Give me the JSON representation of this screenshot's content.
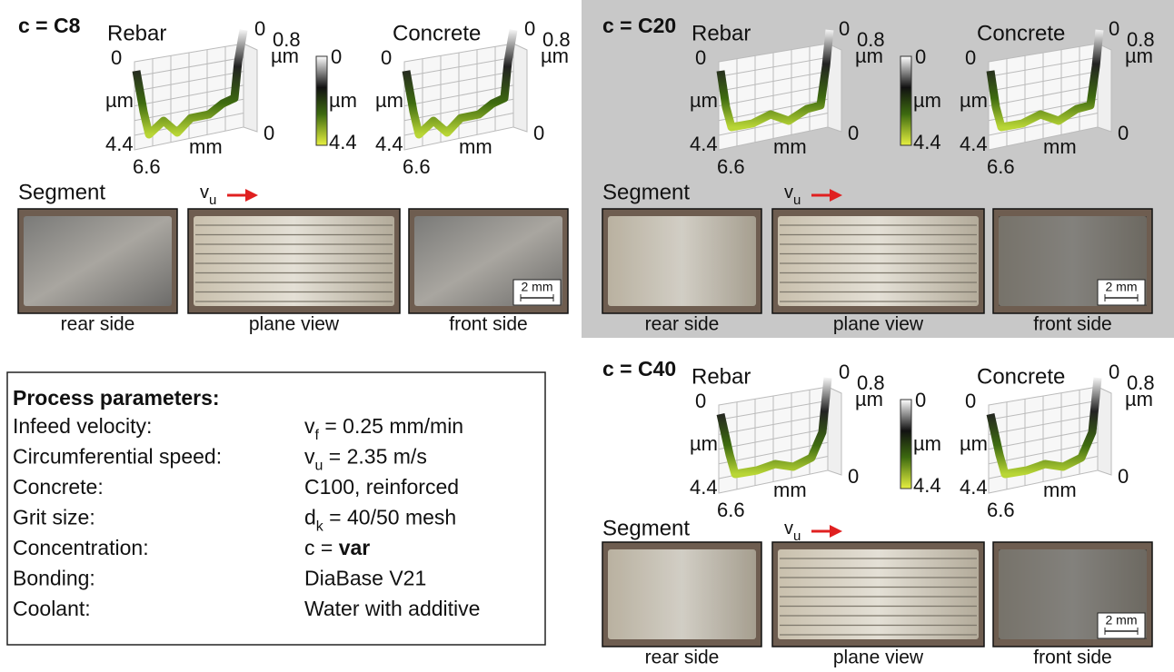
{
  "panels": [
    {
      "title": "c = C8",
      "segment_label": "Segment",
      "speed_label": {
        "main": "v",
        "sub": "u"
      },
      "plots": [
        {
          "title": "Rebar",
          "z_top": "0",
          "z_axis": "µm",
          "z_bottom": "4.4",
          "x_axis": "mm",
          "x_end": "6.6",
          "y_start": "0",
          "y_end": "0.8",
          "y_axis": "µm"
        },
        {
          "title": "Concrete",
          "z_top": "0",
          "z_axis": "µm",
          "z_bottom": "4.4",
          "x_axis": "mm",
          "x_end": "6.6",
          "y_start": "0",
          "y_end": "0.8",
          "y_axis": "µm"
        }
      ],
      "colorbar": {
        "top": "0",
        "axis": "µm",
        "bottom": "4.4"
      },
      "photos": [
        "rear side",
        "plane view",
        "front side"
      ],
      "scale_bar": "2 mm"
    },
    {
      "title": "c = C20",
      "segment_label": "Segment",
      "speed_label": {
        "main": "v",
        "sub": "u"
      },
      "plots": [
        {
          "title": "Rebar",
          "z_top": "0",
          "z_axis": "µm",
          "z_bottom": "4.4",
          "x_axis": "mm",
          "x_end": "6.6",
          "y_start": "0",
          "y_end": "0.8",
          "y_axis": "µm"
        },
        {
          "title": "Concrete",
          "z_top": "0",
          "z_axis": "µm",
          "z_bottom": "4.4",
          "x_axis": "mm",
          "x_end": "6.6",
          "y_start": "0",
          "y_end": "0.8",
          "y_axis": "µm"
        }
      ],
      "colorbar": {
        "top": "0",
        "axis": "µm",
        "bottom": "4.4"
      },
      "photos": [
        "rear side",
        "plane view",
        "front side"
      ],
      "scale_bar": "2 mm"
    },
    {
      "title": "c = C40",
      "segment_label": "Segment",
      "speed_label": {
        "main": "v",
        "sub": "u"
      },
      "plots": [
        {
          "title": "Rebar",
          "z_top": "0",
          "z_axis": "µm",
          "z_bottom": "4.4",
          "x_axis": "mm",
          "x_end": "6.6",
          "y_start": "0",
          "y_end": "0.8",
          "y_axis": "µm"
        },
        {
          "title": "Concrete",
          "z_top": "0",
          "z_axis": "µm",
          "z_bottom": "4.4",
          "x_axis": "mm",
          "x_end": "6.6",
          "y_start": "0",
          "y_end": "0.8",
          "y_axis": "µm"
        }
      ],
      "colorbar": {
        "top": "0",
        "axis": "µm",
        "bottom": "4.4"
      },
      "photos": [
        "rear side",
        "plane view",
        "front side"
      ],
      "scale_bar": "2 mm"
    }
  ],
  "parameters": {
    "title": "Process parameters:",
    "rows": [
      {
        "label": "Infeed velocity:",
        "value": [
          {
            "text": "v"
          },
          {
            "text": "f",
            "sub": true
          },
          {
            "text": " = 0.25 mm/min"
          }
        ]
      },
      {
        "label": "Circumferential speed:",
        "value": [
          {
            "text": "v"
          },
          {
            "text": "u",
            "sub": true
          },
          {
            "text": " = 2.35 m/s"
          }
        ]
      },
      {
        "label": "Concrete:",
        "value": [
          {
            "text": "C100, reinforced"
          }
        ]
      },
      {
        "label": "Grit size:",
        "value": [
          {
            "text": "d"
          },
          {
            "text": "k",
            "sub": true
          },
          {
            "text": " = 40/50 mesh"
          }
        ]
      },
      {
        "label": "Concentration:",
        "value": [
          {
            "text": "c = "
          },
          {
            "text": "var",
            "bold": true
          }
        ]
      },
      {
        "label": "Bonding:",
        "value": [
          {
            "text": "DiaBase V21"
          }
        ]
      },
      {
        "label": "Coolant:",
        "value": [
          {
            "text": "Water with additive"
          }
        ]
      }
    ]
  }
}
